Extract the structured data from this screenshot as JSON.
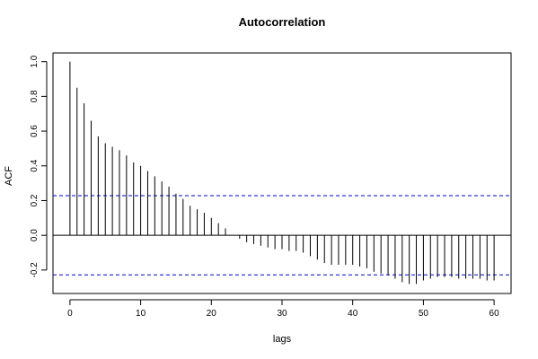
{
  "chart_data": {
    "type": "bar",
    "title": "Autocorrelation",
    "xlabel": "lags",
    "ylabel": "ACF",
    "xlim": [
      -2.4,
      62.4
    ],
    "ylim": [
      -0.335,
      1.05
    ],
    "x_ticks": [
      0,
      10,
      20,
      30,
      40,
      50,
      60
    ],
    "y_ticks": [
      -0.2,
      0.0,
      0.2,
      0.4,
      0.6,
      0.8,
      1.0
    ],
    "y_tick_labels": [
      "-0.2",
      "0.0",
      "0.2",
      "0.4",
      "0.6",
      "0.8",
      "1.0"
    ],
    "confidence_bound": 0.228,
    "lags": [
      0,
      1,
      2,
      3,
      4,
      5,
      6,
      7,
      8,
      9,
      10,
      11,
      12,
      13,
      14,
      15,
      16,
      17,
      18,
      19,
      20,
      21,
      22,
      23,
      24,
      25,
      26,
      27,
      28,
      29,
      30,
      31,
      32,
      33,
      34,
      35,
      36,
      37,
      38,
      39,
      40,
      41,
      42,
      43,
      44,
      45,
      46,
      47,
      48,
      49,
      50,
      51,
      52,
      53,
      54,
      55,
      56,
      57,
      58,
      59,
      60
    ],
    "values": [
      1.0,
      0.85,
      0.76,
      0.66,
      0.57,
      0.53,
      0.51,
      0.49,
      0.46,
      0.42,
      0.4,
      0.37,
      0.34,
      0.31,
      0.28,
      0.24,
      0.21,
      0.17,
      0.15,
      0.13,
      0.1,
      0.07,
      0.04,
      0.0,
      -0.02,
      -0.04,
      -0.05,
      -0.06,
      -0.07,
      -0.08,
      -0.08,
      -0.09,
      -0.09,
      -0.1,
      -0.12,
      -0.14,
      -0.16,
      -0.17,
      -0.17,
      -0.17,
      -0.17,
      -0.18,
      -0.19,
      -0.21,
      -0.22,
      -0.23,
      -0.25,
      -0.27,
      -0.28,
      -0.28,
      -0.26,
      -0.25,
      -0.24,
      -0.24,
      -0.24,
      -0.25,
      -0.25,
      -0.25,
      -0.25,
      -0.26,
      -0.26
    ],
    "colors": {
      "bars": "#000000",
      "bounds": "#0000cc",
      "zero_line": "#000000"
    },
    "grid": false,
    "legend": "none"
  }
}
